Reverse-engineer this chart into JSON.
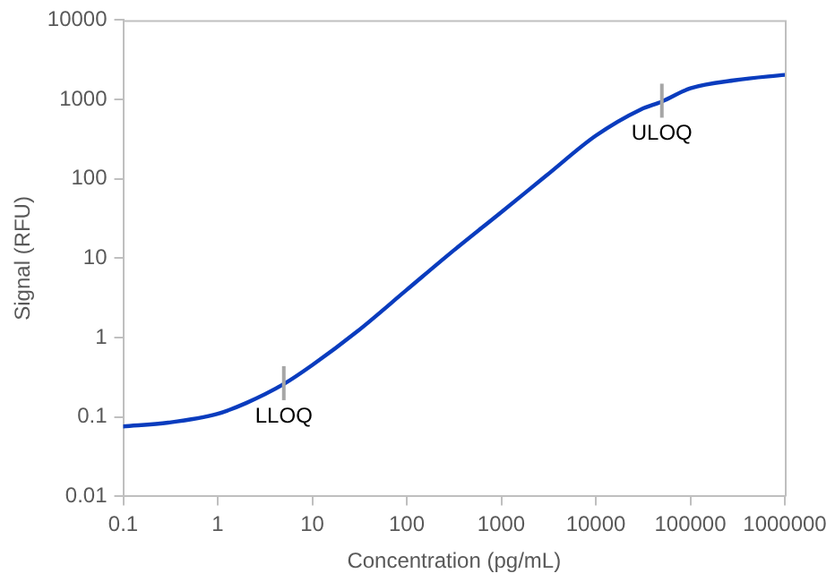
{
  "chart_data": {
    "type": "line",
    "xlabel": "Concentration (pg/mL)",
    "ylabel": "Signal (RFU)",
    "log": "xy",
    "grid": false,
    "marker": "none",
    "line_style": "solid",
    "x": [
      0.1,
      0.3,
      1,
      2,
      5,
      10,
      30,
      100,
      300,
      1000,
      3000,
      10000,
      30000,
      50000,
      100000,
      300000,
      1000000
    ],
    "series": [
      {
        "color": "#0a3cbe",
        "values": [
          0.076,
          0.085,
          0.11,
          0.15,
          0.26,
          0.45,
          1.2,
          4,
          12,
          38,
          110,
          350,
          750,
          940,
          1380,
          1750,
          2040
        ]
      }
    ],
    "xlim": [
      0.1,
      1000000
    ],
    "xticks": [
      0.1,
      1,
      10,
      100,
      1000,
      10000,
      100000,
      1000000
    ],
    "ylim": [
      0.01,
      10000
    ],
    "yticks": [
      0.01,
      0.1,
      1,
      10,
      100,
      1000,
      10000
    ],
    "annotations": [
      {
        "text": "LLOQ",
        "x": 5,
        "y": 0.26
      },
      {
        "text": "ULOQ",
        "x": 50000,
        "y": 940
      }
    ]
  }
}
